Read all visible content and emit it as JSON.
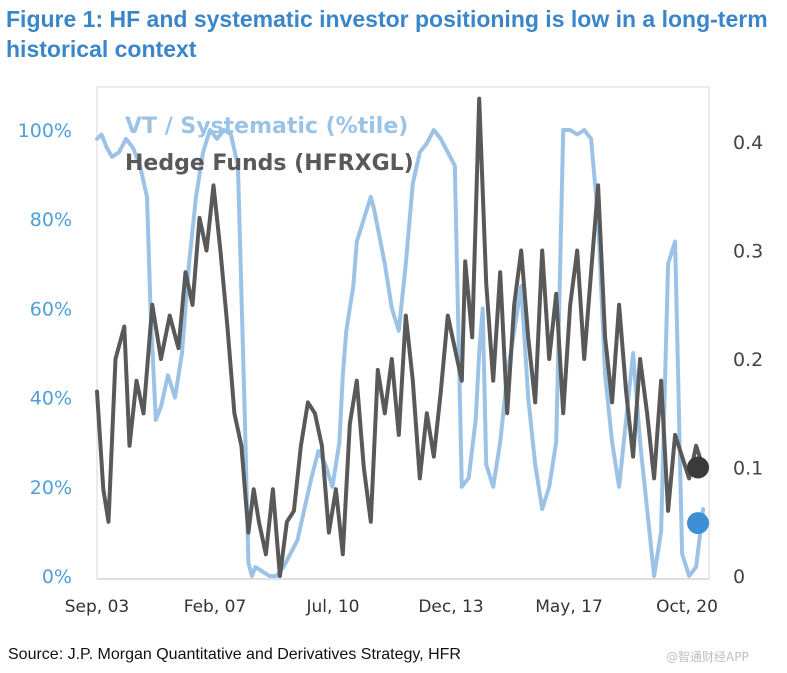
{
  "title": "Figure 1: HF and systematic investor positioning is low in a long-term historical context",
  "source": "Source: J.P. Morgan Quantitative and Derivatives Strategy, HFR",
  "watermark": "@智通财经APP",
  "chart_data": {
    "type": "line",
    "x_tick_labels": [
      "Sep, 03",
      "Feb, 07",
      "Jul, 10",
      "Dec, 13",
      "May, 17",
      "Oct, 20"
    ],
    "x_range": [
      2003.67,
      2021.17
    ],
    "y_left": {
      "ticks": [
        "0%",
        "20%",
        "40%",
        "60%",
        "80%",
        "100%"
      ],
      "range": [
        0,
        100
      ]
    },
    "y_right": {
      "ticks": [
        "0",
        "0.1",
        "0.2",
        "0.3",
        "0.4"
      ],
      "range": [
        0,
        0.45
      ]
    },
    "legend_position": "top-left",
    "colors": {
      "systematic": "#9cc3e6",
      "hedge_funds": "#595959",
      "systematic_marker": "#3d8fd6",
      "hedge_funds_marker": "#3a3a3a"
    },
    "series": [
      {
        "name": "VT / Systematic (%tile)",
        "axis": "left",
        "x": [
          2003.67,
          2003.8,
          2003.95,
          2004.1,
          2004.3,
          2004.5,
          2004.7,
          2004.9,
          2005.1,
          2005.2,
          2005.35,
          2005.5,
          2005.7,
          2005.9,
          2006.1,
          2006.3,
          2006.5,
          2006.7,
          2006.9,
          2007.1,
          2007.3,
          2007.5,
          2007.7,
          2007.9,
          2008.0,
          2008.1,
          2008.2,
          2008.4,
          2008.6,
          2008.8,
          2009.0,
          2009.2,
          2009.4,
          2009.6,
          2009.8,
          2010.0,
          2010.2,
          2010.4,
          2010.6,
          2010.7,
          2010.8,
          2011.0,
          2011.1,
          2011.3,
          2011.5,
          2011.6,
          2011.7,
          2011.9,
          2012.1,
          2012.3,
          2012.5,
          2012.7,
          2012.9,
          2013.1,
          2013.3,
          2013.5,
          2013.7,
          2013.9,
          2014.1,
          2014.3,
          2014.5,
          2014.6,
          2014.7,
          2014.8,
          2015.0,
          2015.2,
          2015.4,
          2015.6,
          2015.8,
          2016.0,
          2016.2,
          2016.4,
          2016.6,
          2016.8,
          2017.0,
          2017.2,
          2017.4,
          2017.6,
          2017.8,
          2018.0,
          2018.2,
          2018.4,
          2018.6,
          2018.8,
          2019.0,
          2019.2,
          2019.4,
          2019.6,
          2019.8,
          2020.0,
          2020.2,
          2020.4,
          2020.6,
          2020.8,
          2021.0
        ],
        "values": [
          98,
          99,
          96,
          94,
          95,
          98,
          96,
          92,
          85,
          60,
          35,
          38,
          45,
          40,
          50,
          70,
          85,
          95,
          100,
          98,
          100,
          99,
          92,
          35,
          3,
          0,
          2,
          1,
          0,
          0,
          2,
          5,
          8,
          15,
          22,
          28,
          25,
          20,
          30,
          45,
          55,
          65,
          75,
          80,
          85,
          82,
          78,
          70,
          60,
          55,
          70,
          88,
          95,
          97,
          100,
          98,
          95,
          92,
          20,
          22,
          35,
          50,
          60,
          25,
          20,
          30,
          45,
          55,
          65,
          40,
          25,
          15,
          20,
          30,
          100,
          100,
          99,
          100,
          98,
          80,
          45,
          30,
          20,
          35,
          50,
          30,
          15,
          0,
          10,
          70,
          75,
          5,
          0,
          2,
          15
        ]
      },
      {
        "name": "Hedge Funds (HFRXGL)",
        "axis": "right",
        "x": [
          2003.67,
          2003.85,
          2004.0,
          2004.2,
          2004.45,
          2004.6,
          2004.8,
          2005.0,
          2005.25,
          2005.5,
          2005.75,
          2006.0,
          2006.2,
          2006.4,
          2006.6,
          2006.8,
          2007.0,
          2007.2,
          2007.4,
          2007.6,
          2007.8,
          2008.0,
          2008.15,
          2008.3,
          2008.5,
          2008.7,
          2008.9,
          2009.1,
          2009.3,
          2009.5,
          2009.7,
          2009.9,
          2010.1,
          2010.3,
          2010.5,
          2010.7,
          2010.9,
          2011.1,
          2011.3,
          2011.5,
          2011.7,
          2011.9,
          2012.1,
          2012.3,
          2012.5,
          2012.7,
          2012.9,
          2013.1,
          2013.3,
          2013.5,
          2013.7,
          2013.9,
          2014.1,
          2014.2,
          2014.4,
          2014.6,
          2014.8,
          2015.0,
          2015.2,
          2015.4,
          2015.6,
          2015.8,
          2016.0,
          2016.2,
          2016.4,
          2016.6,
          2016.8,
          2017.0,
          2017.2,
          2017.4,
          2017.6,
          2017.8,
          2018.0,
          2018.2,
          2018.4,
          2018.6,
          2018.8,
          2019.0,
          2019.2,
          2019.4,
          2019.6,
          2019.8,
          2020.0,
          2020.2,
          2020.4,
          2020.6,
          2020.8,
          2021.0
        ],
        "values": [
          0.17,
          0.08,
          0.05,
          0.2,
          0.23,
          0.12,
          0.18,
          0.15,
          0.25,
          0.2,
          0.24,
          0.21,
          0.28,
          0.25,
          0.33,
          0.3,
          0.36,
          0.3,
          0.23,
          0.15,
          0.12,
          0.04,
          0.08,
          0.05,
          0.02,
          0.08,
          0.0,
          0.05,
          0.06,
          0.12,
          0.16,
          0.15,
          0.12,
          0.04,
          0.08,
          0.02,
          0.14,
          0.18,
          0.1,
          0.05,
          0.19,
          0.15,
          0.2,
          0.13,
          0.24,
          0.18,
          0.09,
          0.15,
          0.11,
          0.17,
          0.24,
          0.21,
          0.18,
          0.29,
          0.22,
          0.44,
          0.27,
          0.18,
          0.28,
          0.15,
          0.25,
          0.3,
          0.22,
          0.16,
          0.3,
          0.2,
          0.26,
          0.15,
          0.25,
          0.3,
          0.2,
          0.28,
          0.36,
          0.22,
          0.16,
          0.25,
          0.17,
          0.11,
          0.2,
          0.15,
          0.09,
          0.18,
          0.06,
          0.13,
          0.11,
          0.09,
          0.12,
          0.1
        ]
      }
    ]
  },
  "legend": {
    "systematic": "VT / Systematic (%tile)",
    "hedge_funds": "Hedge Funds (HFRXGL)"
  }
}
